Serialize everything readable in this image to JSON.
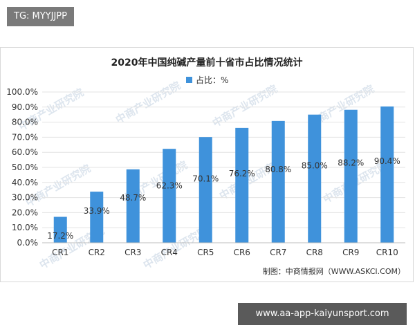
{
  "header_tag": "TG: MYYJJPP",
  "footer_tag": "www.aa-app-kaiyunsport.com",
  "colors": {
    "bar": "#3f92db",
    "grid": "#e3e3e3",
    "axis": "#bdbdbd",
    "text": "#333333"
  },
  "watermark_text": "中商产业研究院",
  "chart_data": {
    "type": "bar",
    "title": "2020年中国纯碱产量前十省市占比情况统计",
    "legend": "占比：%",
    "legend_position": "top-center",
    "source": "制图：中商情报网（WWW.ASKCI.COM）",
    "categories": [
      "CR1",
      "CR2",
      "CR3",
      "CR4",
      "CR5",
      "CR6",
      "CR7",
      "CR8",
      "CR9",
      "CR10"
    ],
    "series": [
      {
        "name": "占比：%",
        "values": [
          17.2,
          33.9,
          48.7,
          62.3,
          70.1,
          76.2,
          80.8,
          85.0,
          88.2,
          90.4
        ],
        "labels": [
          "17.2%",
          "33.9%",
          "48.7%",
          "62.3%",
          "70.1%",
          "76.2%",
          "80.8%",
          "85.0%",
          "88.2%",
          "90.4%"
        ]
      }
    ],
    "yticks": [
      "0.0%",
      "10.0%",
      "20.0%",
      "30.0%",
      "40.0%",
      "50.0%",
      "60.0%",
      "70.0%",
      "80.0%",
      "90.0%",
      "100.0%"
    ],
    "ylim": [
      0,
      100
    ],
    "grid": true
  }
}
